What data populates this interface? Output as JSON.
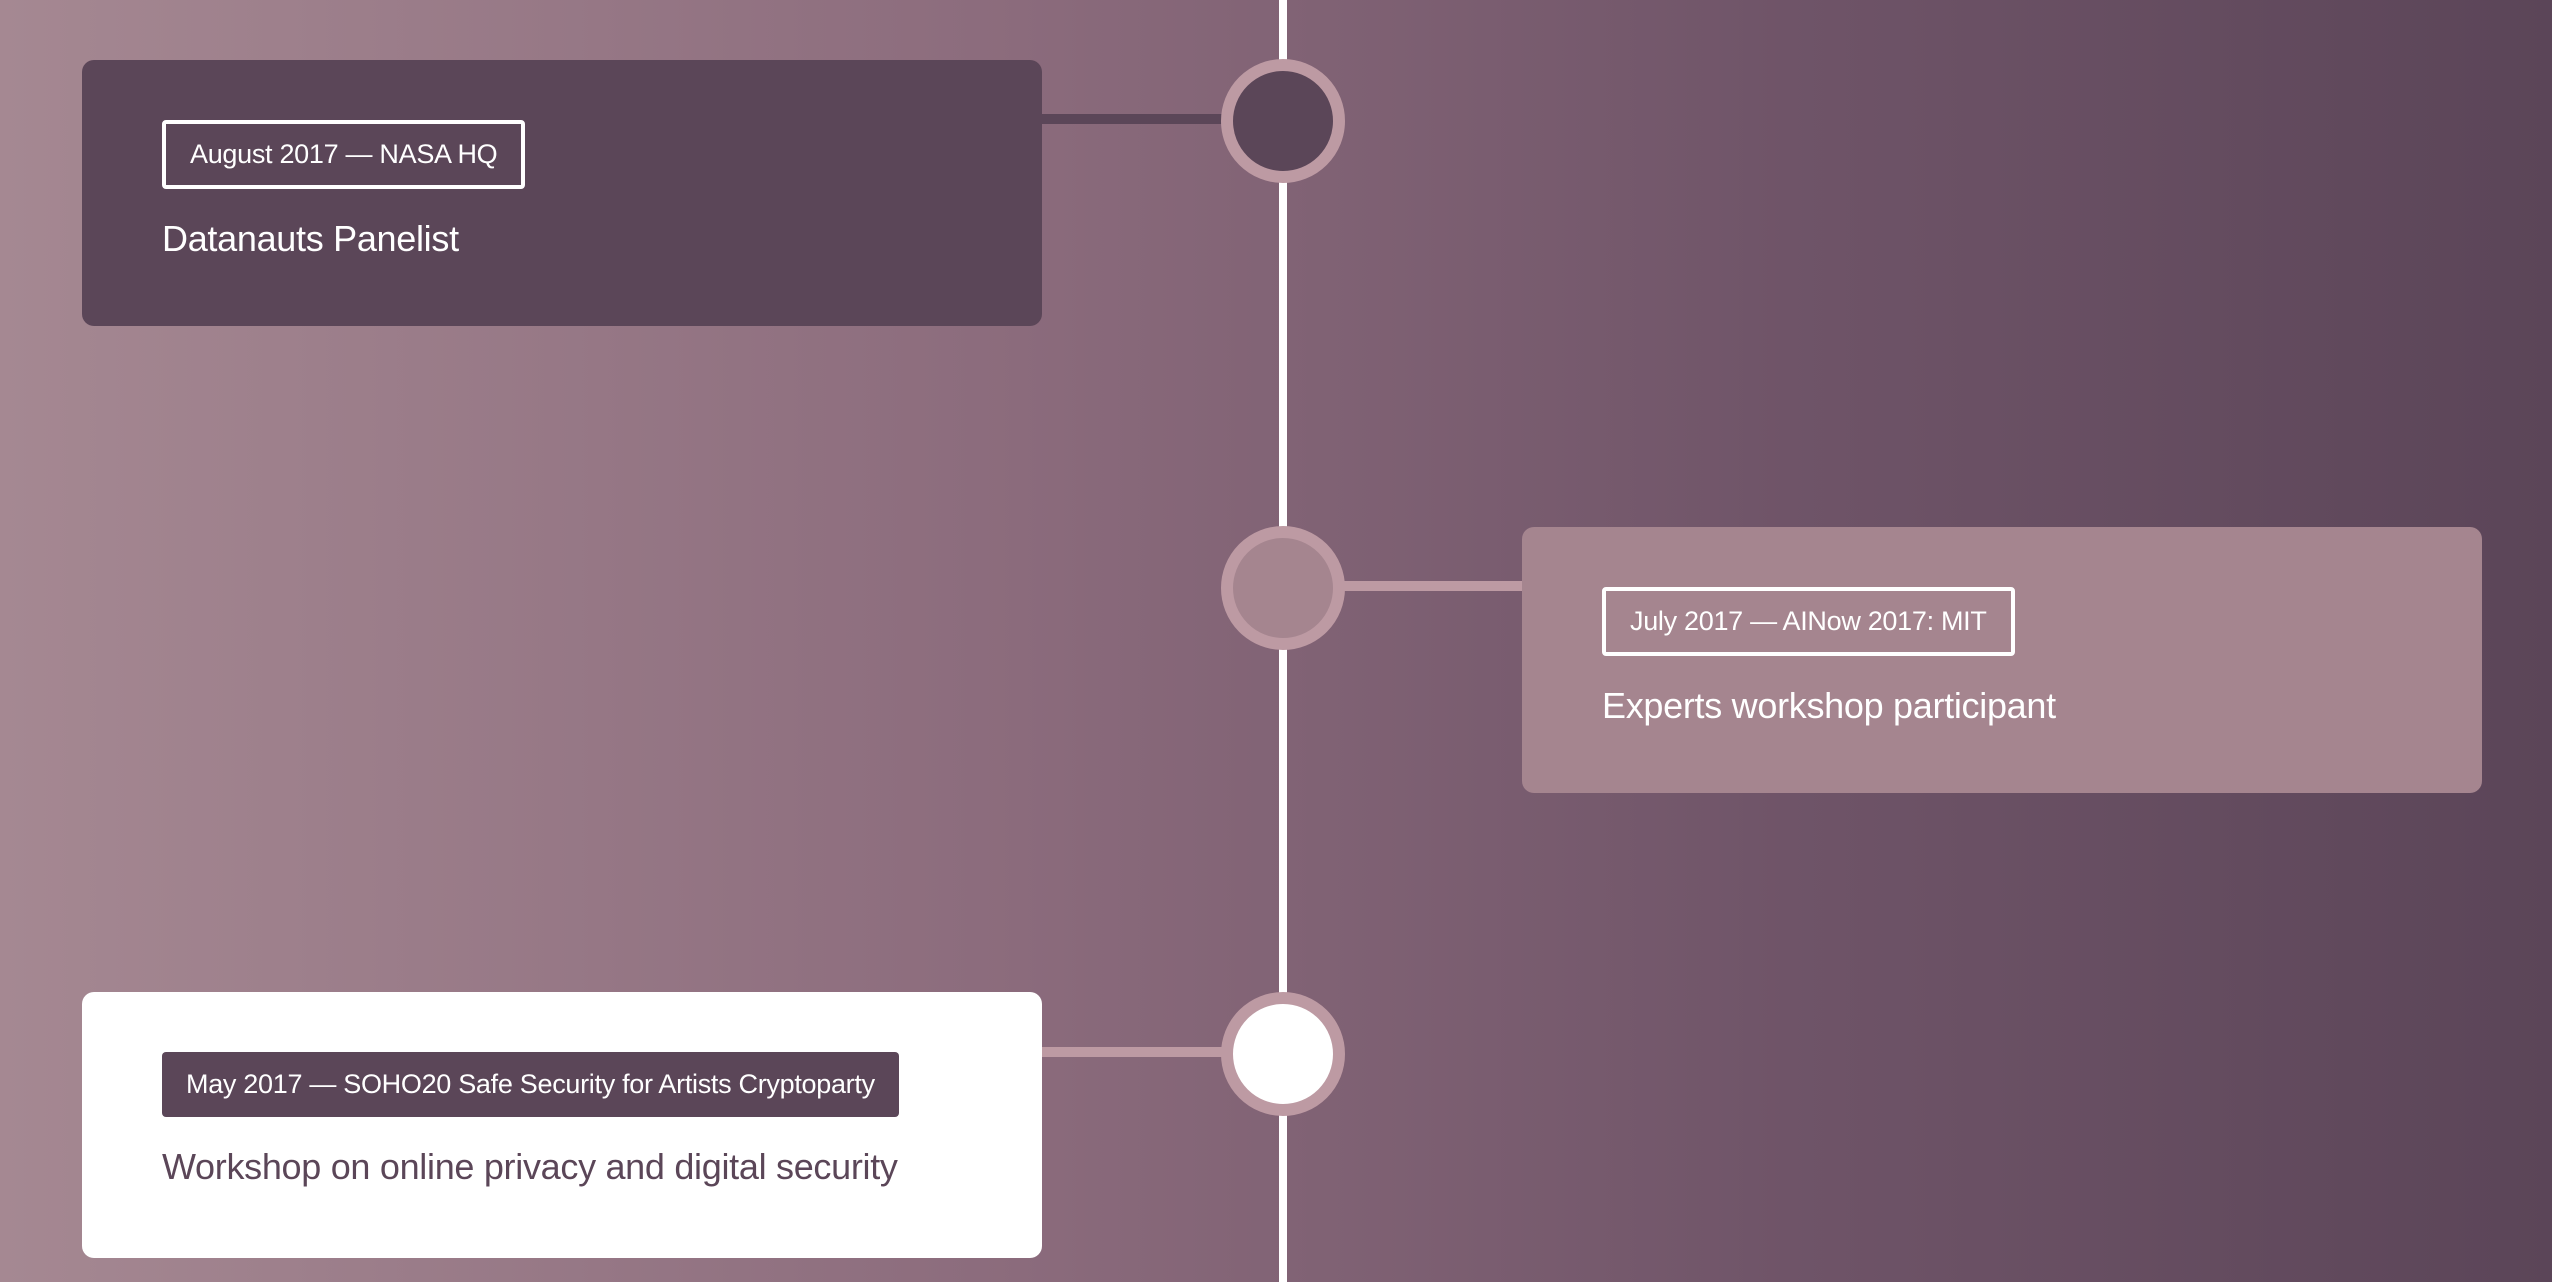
{
  "timeline": {
    "colors": {
      "line": "#ffffff",
      "node_border": "#bd9aa3",
      "dark": "#5b4658",
      "mid": "#a5858f",
      "light": "#ffffff"
    },
    "events": [
      {
        "date_label": "August 2017 — NASA HQ",
        "title": "Datanauts Panelist",
        "side": "left",
        "style": "dark"
      },
      {
        "date_label": "July 2017 — AINow 2017: MIT",
        "title": "Experts workshop participant",
        "side": "right",
        "style": "mid"
      },
      {
        "date_label": "May 2017 — SOHO20 Safe Security for Artists Cryptoparty",
        "title": "Workshop on online privacy and digital security",
        "side": "left",
        "style": "light"
      }
    ]
  }
}
